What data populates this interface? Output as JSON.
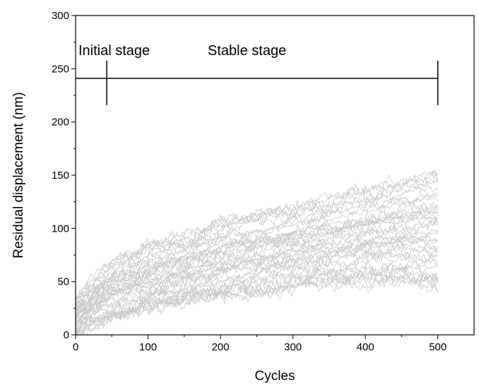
{
  "chart_data": {
    "type": "line",
    "title": "",
    "xlabel": "Cycles",
    "ylabel": "Residual displacement (nm)",
    "xlim": [
      0,
      550
    ],
    "ylim": [
      0,
      300
    ],
    "x_ticks": [
      0,
      100,
      200,
      300,
      400,
      500
    ],
    "y_ticks": [
      0,
      50,
      100,
      150,
      200,
      250,
      300
    ],
    "grid": false,
    "legend": "none",
    "series_color": "#c8c8c8",
    "series_count": 40,
    "envelope": {
      "x": [
        0,
        50,
        100,
        150,
        200,
        250,
        300,
        350,
        400,
        450,
        500
      ],
      "upper": [
        35,
        70,
        85,
        97,
        108,
        115,
        122,
        130,
        137,
        145,
        155
      ],
      "typical": [
        10,
        35,
        45,
        52,
        60,
        66,
        70,
        74,
        78,
        82,
        85
      ],
      "lower": [
        0,
        15,
        22,
        28,
        33,
        38,
        42,
        45,
        47,
        48,
        40
      ]
    },
    "annotations": {
      "stage_line_y": 241,
      "stage_line_x": [
        0,
        500
      ],
      "stage_divider_x": 43,
      "labels": [
        "Initial stage",
        "Stable stage"
      ]
    }
  }
}
